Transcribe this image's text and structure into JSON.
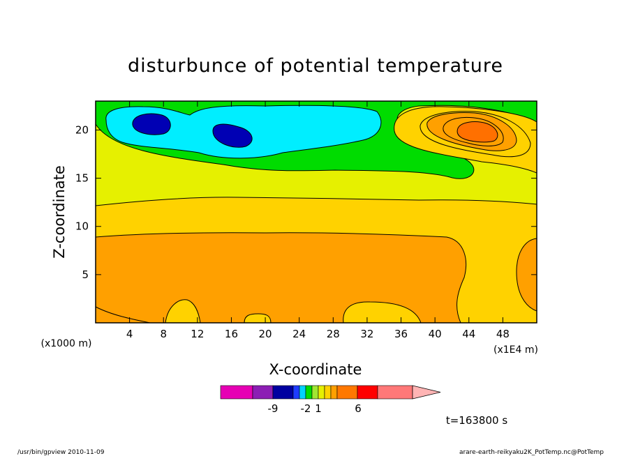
{
  "chart_data": {
    "type": "heatmap",
    "title": "disturbunce of potential temperature",
    "xlabel": "X-coordinate",
    "ylabel": "Z-coordinate",
    "x_unit": "(x1E4 m)",
    "y_unit": "(x1000 m)",
    "xlim": [
      0,
      52
    ],
    "ylim": [
      0,
      23
    ],
    "x_ticks": [
      4,
      8,
      12,
      16,
      20,
      24,
      28,
      32,
      36,
      40,
      44,
      48
    ],
    "y_ticks": [
      5,
      10,
      15,
      20
    ],
    "grid": false,
    "colorbar": {
      "colors": [
        "#e600b4",
        "#8c1eb4",
        "#0000a0",
        "#1e3cff",
        "#00d2ff",
        "#00dc00",
        "#a0e632",
        "#e6f000",
        "#ffd200",
        "#ffa000",
        "#ff7800",
        "#ff0000",
        "#ff7878",
        "#ffb4b4"
      ],
      "tick_labels": [
        {
          "label": "-9",
          "value": -9
        },
        {
          "label": "-2",
          "value": -2
        },
        {
          "label": "1",
          "value": 1
        },
        {
          "label": "6",
          "value": 6
        }
      ]
    },
    "time_label": "t=163800 s"
  },
  "footer": {
    "left": "/usr/bin/gpview   2010-11-09",
    "right": "arare-earth-reikyaku2K_PotTemp.nc@PotTemp"
  }
}
